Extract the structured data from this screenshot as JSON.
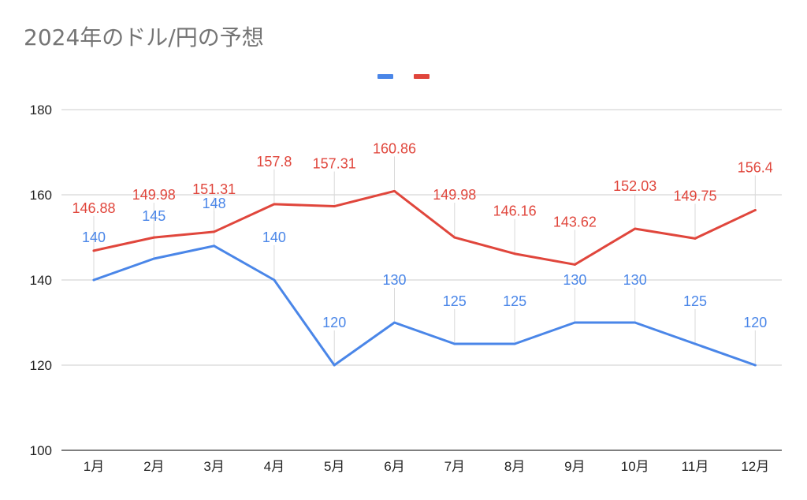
{
  "title": "2024年のドル/円の予想",
  "chart_data": {
    "type": "line",
    "title": "2024年のドル/円の予想",
    "xlabel": "",
    "ylabel": "",
    "categories": [
      "1月",
      "2月",
      "3月",
      "4月",
      "5月",
      "6月",
      "7月",
      "8月",
      "9月",
      "10月",
      "11月",
      "12月"
    ],
    "ylim": [
      100,
      180
    ],
    "yticks": [
      100,
      120,
      140,
      160,
      180
    ],
    "grid": true,
    "legend_position": "top",
    "data_labels": true,
    "series": [
      {
        "color": "#4a86e8",
        "values": [
          140,
          145,
          148,
          140,
          120,
          130,
          125,
          125,
          130,
          130,
          125,
          120
        ],
        "labels": [
          "140",
          "145",
          "148",
          "140",
          "120",
          "130",
          "125",
          "125",
          "130",
          "130",
          "125",
          "120"
        ]
      },
      {
        "color": "#e0463c",
        "values": [
          146.88,
          149.98,
          151.31,
          157.8,
          157.31,
          160.86,
          149.98,
          146.16,
          143.62,
          152.03,
          149.75,
          156.4
        ],
        "labels": [
          "146.88",
          "149.98",
          "151.31",
          "157.8",
          "157.31",
          "160.86",
          "149.98",
          "146.16",
          "143.62",
          "152.03",
          "149.75",
          "156.4"
        ]
      }
    ]
  }
}
